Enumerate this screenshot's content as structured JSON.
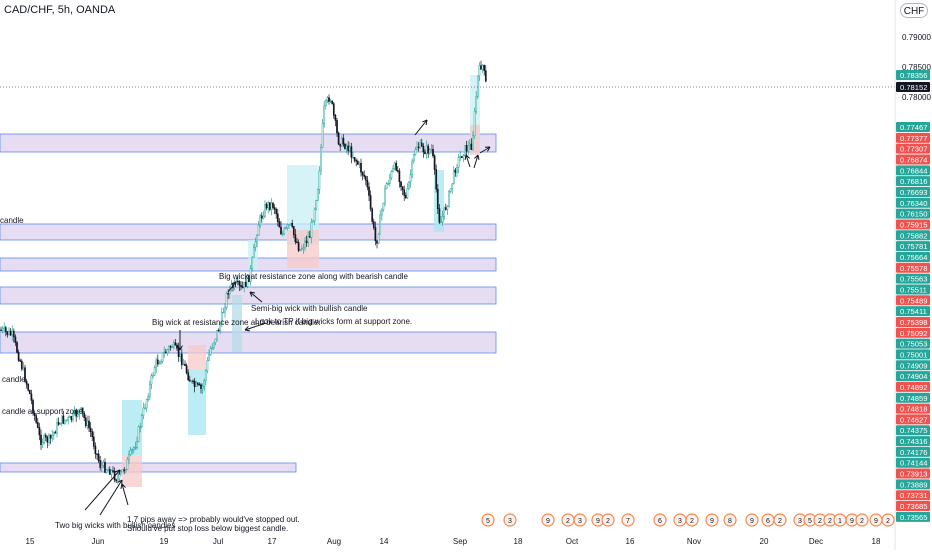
{
  "header": {
    "symbol_title": "CAD/CHF, 5h, OANDA",
    "currency_button": "CHF"
  },
  "chart_data": {
    "type": "candlestick",
    "title": "CAD/CHF, 5h, OANDA",
    "x_ticks": [
      "15",
      "Jun",
      "19",
      "Jul",
      "17",
      "Aug",
      "14",
      "Sep",
      "18",
      "Oct",
      "16",
      "Nov",
      "20",
      "Dec",
      "18"
    ],
    "y_ticks": [
      0.79,
      0.785,
      0.78
    ],
    "price_labels": [
      {
        "value": "0.78356",
        "color": "#26a69a",
        "price": 0.78356
      },
      {
        "value": "0.78152",
        "color": "#131722",
        "price": 0.78152
      },
      {
        "value": "0.77467",
        "color": "#26a69a",
        "price": 0.77467
      },
      {
        "value": "0.77377",
        "color": "#ef5350",
        "price": 0.77377
      },
      {
        "value": "0.77307",
        "color": "#ef5350",
        "price": 0.77307
      },
      {
        "value": "0.76874",
        "color": "#ef5350",
        "price": 0.76874
      },
      {
        "value": "0.76844",
        "color": "#26a69a",
        "price": 0.76844
      },
      {
        "value": "0.76816",
        "color": "#26a69a",
        "price": 0.76816
      },
      {
        "value": "0.76693",
        "color": "#26a69a",
        "price": 0.76693
      },
      {
        "value": "0.76340",
        "color": "#26a69a",
        "price": 0.7634
      },
      {
        "value": "0.76150",
        "color": "#26a69a",
        "price": 0.7615
      },
      {
        "value": "0.75915",
        "color": "#ef5350",
        "price": 0.75915
      },
      {
        "value": "0.75882",
        "color": "#26a69a",
        "price": 0.75882
      },
      {
        "value": "0.75781",
        "color": "#26a69a",
        "price": 0.75781
      },
      {
        "value": "0.75664",
        "color": "#26a69a",
        "price": 0.75664
      },
      {
        "value": "0.75578",
        "color": "#ef5350",
        "price": 0.75578
      },
      {
        "value": "0.75563",
        "color": "#26a69a",
        "price": 0.75563
      },
      {
        "value": "0.75511",
        "color": "#26a69a",
        "price": 0.75511
      },
      {
        "value": "0.75489",
        "color": "#ef5350",
        "price": 0.75489
      },
      {
        "value": "0.75411",
        "color": "#26a69a",
        "price": 0.75411
      },
      {
        "value": "0.75398",
        "color": "#ef5350",
        "price": 0.75398
      },
      {
        "value": "0.75092",
        "color": "#ef5350",
        "price": 0.75092
      },
      {
        "value": "0.75053",
        "color": "#26a69a",
        "price": 0.75053
      },
      {
        "value": "0.75001",
        "color": "#26a69a",
        "price": 0.75001
      },
      {
        "value": "0.74909",
        "color": "#26a69a",
        "price": 0.74909
      },
      {
        "value": "0.74904",
        "color": "#26a69a",
        "price": 0.74904
      },
      {
        "value": "0.74892",
        "color": "#ef5350",
        "price": 0.74892
      },
      {
        "value": "0.74859",
        "color": "#26a69a",
        "price": 0.74859
      },
      {
        "value": "0.74818",
        "color": "#ef5350",
        "price": 0.74818
      },
      {
        "value": "0.74627",
        "color": "#ef5350",
        "price": 0.74627
      },
      {
        "value": "0.74375",
        "color": "#26a69a",
        "price": 0.74375
      },
      {
        "value": "0.74316",
        "color": "#26a69a",
        "price": 0.74316
      },
      {
        "value": "0.74176",
        "color": "#26a69a",
        "price": 0.74176
      },
      {
        "value": "0.74144",
        "color": "#26a69a",
        "price": 0.74144
      },
      {
        "value": "0.73913",
        "color": "#ef5350",
        "price": 0.73913
      },
      {
        "value": "0.73889",
        "color": "#26a69a",
        "price": 0.73889
      },
      {
        "value": "0.73731",
        "color": "#ef5350",
        "price": 0.73731
      },
      {
        "value": "0.73685",
        "color": "#ef5350",
        "price": 0.73685
      },
      {
        "value": "0.73565",
        "color": "#26a69a",
        "price": 0.73565
      }
    ],
    "current_price": 0.78152,
    "zones": [
      {
        "low": 0.773,
        "high": 0.7745
      },
      {
        "low": 0.7595,
        "high": 0.7605
      },
      {
        "low": 0.7568,
        "high": 0.7575
      },
      {
        "low": 0.7545,
        "high": 0.7555
      },
      {
        "low": 0.7495,
        "high": 0.751
      },
      {
        "low": 0.7413,
        "high": 0.7418
      }
    ],
    "annotations": [
      "candle",
      "candle",
      "candle at support zone",
      "Big wick at resistance zone along with bearish candle",
      "Semi-big wick with bullish candle",
      "Big wick at resistance zone and bearish candle.",
      "Look to TP if big wicks form at support zone.",
      "1.7 pips away => probably would've stopped out.",
      "Should've put stop loss below biggest candle.",
      "Two big wicks with bullish candles"
    ],
    "event_markers": [
      "5",
      "3",
      "9",
      "2",
      "3",
      "9",
      "2",
      "7",
      "6",
      "3",
      "2",
      "9",
      "8",
      "9",
      "6",
      "2",
      "3",
      "5",
      "2",
      "2",
      "1",
      "9",
      "2",
      "9",
      "2",
      "3",
      "3",
      "2"
    ],
    "colors": {
      "up": "#26a69a",
      "down": "#ef5350",
      "zone_fill": "#e1d5ef",
      "zone_border": "#5b8def"
    },
    "grid": false
  }
}
